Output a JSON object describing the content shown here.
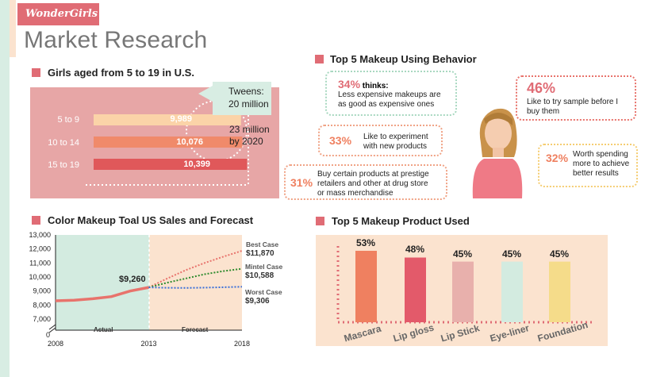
{
  "brand": "WonderGirls",
  "page_title": "Market Research",
  "girls_section": {
    "title": "Girls aged from 5 to 19 in U.S.",
    "rows": [
      {
        "label": "5 to 9",
        "value": "9,989"
      },
      {
        "label": "10 to 14",
        "value": "10,076"
      },
      {
        "label": "15 to 19",
        "value": "10,399"
      }
    ],
    "tweens_label": "Tweens:",
    "tweens_value": "20 million",
    "forecast_line1": "23 million",
    "forecast_line2": "by 2020"
  },
  "behavior_section": {
    "title": "Top 5 Makeup Using Behavior",
    "items": [
      {
        "pct": "34%",
        "pct_suffix": " thinks:",
        "text": [
          "Less expensive makeups are",
          "as good as expensive ones"
        ]
      },
      {
        "pct": "46%",
        "text": [
          "Like to try sample before I",
          "buy them"
        ]
      },
      {
        "pct": "33%",
        "text": [
          "Like to experiment",
          "with new products"
        ]
      },
      {
        "pct": "32%",
        "text": [
          "Worth spending",
          "more to achieve",
          "better results"
        ]
      },
      {
        "pct": "31%",
        "text": [
          "Buy certain products at prestige",
          "retailers and other at drug store",
          "or mass merchandise"
        ]
      }
    ]
  },
  "sales_section": {
    "title": "Color Makeup Toal US Sales and Forecast",
    "actual_label": "Actual",
    "forecast_label": "Forecast",
    "value_2013": "$9,260",
    "zero_label": "0",
    "best_case": {
      "name": "Best Case",
      "value": "$11,870",
      "color": "#e8736c"
    },
    "mintel_case": {
      "name": "Mintel Case",
      "value": "$10,588",
      "color": "#2e8b2e"
    },
    "worst_case": {
      "name": "Worst Case",
      "value": "$9,306",
      "color": "#3a6fd8"
    }
  },
  "products_section": {
    "title": "Top 5 Makeup Product Used"
  },
  "colors": {
    "accent": "#e06c75",
    "mint": "#d8ede3",
    "peach": "#fbe3cf",
    "pink_panel": "#e7a6a6"
  },
  "chart_data": [
    {
      "type": "bar",
      "orientation": "horizontal",
      "title": "Girls aged from 5 to 19 in U.S.",
      "categories": [
        "5 to 9",
        "10 to 14",
        "15 to 19"
      ],
      "values": [
        9989,
        10076,
        10399
      ],
      "colors": [
        "#fbd3a8",
        "#f08a6a",
        "#e0585a"
      ]
    },
    {
      "type": "line",
      "title": "Color Makeup Toal US Sales and Forecast",
      "x_ticks": [
        "2008",
        "2013",
        "2018"
      ],
      "y_ticks": [
        "13,000",
        "12,000",
        "11,000",
        "10,000",
        "9,000",
        "8,000",
        "7,000"
      ],
      "ylim": [
        7000,
        13000
      ],
      "xlim": [
        2008,
        2018
      ],
      "series": [
        {
          "name": "Actual",
          "x": [
            2008,
            2009,
            2010,
            2011,
            2012,
            2013
          ],
          "y": [
            8300,
            8350,
            8450,
            8600,
            9000,
            9260
          ],
          "color": "#e8736c"
        },
        {
          "name": "Best Case",
          "x": [
            2013,
            2014,
            2015,
            2016,
            2017,
            2018
          ],
          "y": [
            9260,
            9900,
            10500,
            11000,
            11450,
            11870
          ],
          "color": "#e8736c"
        },
        {
          "name": "Mintel Case",
          "x": [
            2013,
            2014,
            2015,
            2016,
            2017,
            2018
          ],
          "y": [
            9260,
            9600,
            9900,
            10200,
            10420,
            10588
          ],
          "color": "#2e8b2e"
        },
        {
          "name": "Worst Case",
          "x": [
            2013,
            2014,
            2015,
            2016,
            2017,
            2018
          ],
          "y": [
            9260,
            9230,
            9220,
            9240,
            9270,
            9306
          ],
          "color": "#3a6fd8"
        }
      ]
    },
    {
      "type": "bar",
      "title": "Top 5 Makeup Product Used",
      "categories": [
        "Mascara",
        "Lip gloss",
        "Lip Stick",
        "Eye-liner",
        "Foundation"
      ],
      "values": [
        53,
        48,
        45,
        45,
        45
      ],
      "labels": [
        "53%",
        "48%",
        "45%",
        "45%",
        "45%"
      ],
      "colors": [
        "#ef8060",
        "#e35a6a",
        "#e8b0ac",
        "#d3ebe0",
        "#f5dc8a"
      ]
    }
  ]
}
